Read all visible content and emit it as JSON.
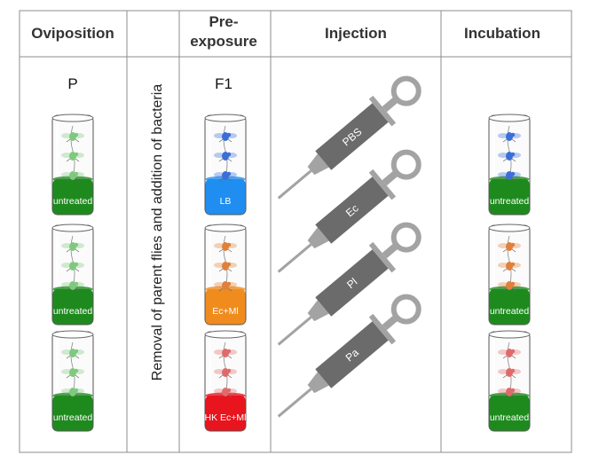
{
  "headers": {
    "oviposition": "Oviposition",
    "pre_exposure_line1": "Pre-",
    "pre_exposure_line2": "exposure",
    "injection": "Injection",
    "incubation": "Incubation"
  },
  "generations": {
    "parental": "P",
    "filial": "F1"
  },
  "removal_label": "Removal of parent flies and addition of bacteria",
  "oviposition_vials": [
    {
      "label": "untreated",
      "medium_color": "#1e8a1e",
      "fly_color": "#7fc97f"
    },
    {
      "label": "untreated",
      "medium_color": "#1e8a1e",
      "fly_color": "#7fc97f"
    },
    {
      "label": "untreated",
      "medium_color": "#1e8a1e",
      "fly_color": "#7fc97f"
    }
  ],
  "pre_exposure_vials": [
    {
      "label": "LB",
      "medium_color": "#1f8ef0",
      "fly_color": "#3a6fd8"
    },
    {
      "label": "Ec+Ml",
      "medium_color": "#f08c1e",
      "fly_color": "#e0803a"
    },
    {
      "label": "HK Ec+Ml",
      "medium_color": "#e8141e",
      "fly_color": "#e06a6a"
    }
  ],
  "injections": [
    {
      "label": "PBS"
    },
    {
      "label": "Ec"
    },
    {
      "label": "Pl"
    },
    {
      "label": "Pa"
    }
  ],
  "incubation_vials": [
    {
      "label": "untreated",
      "medium_color": "#1e8a1e",
      "fly_color": "#3a6fd8"
    },
    {
      "label": "untreated",
      "medium_color": "#1e8a1e",
      "fly_color": "#e0803a"
    },
    {
      "label": "untreated",
      "medium_color": "#1e8a1e",
      "fly_color": "#e06a6a"
    }
  ],
  "colors": {
    "border": "#8c8c8c",
    "syringe": "#a3a3a3",
    "syringe_barrel": "#6b6b6b"
  }
}
